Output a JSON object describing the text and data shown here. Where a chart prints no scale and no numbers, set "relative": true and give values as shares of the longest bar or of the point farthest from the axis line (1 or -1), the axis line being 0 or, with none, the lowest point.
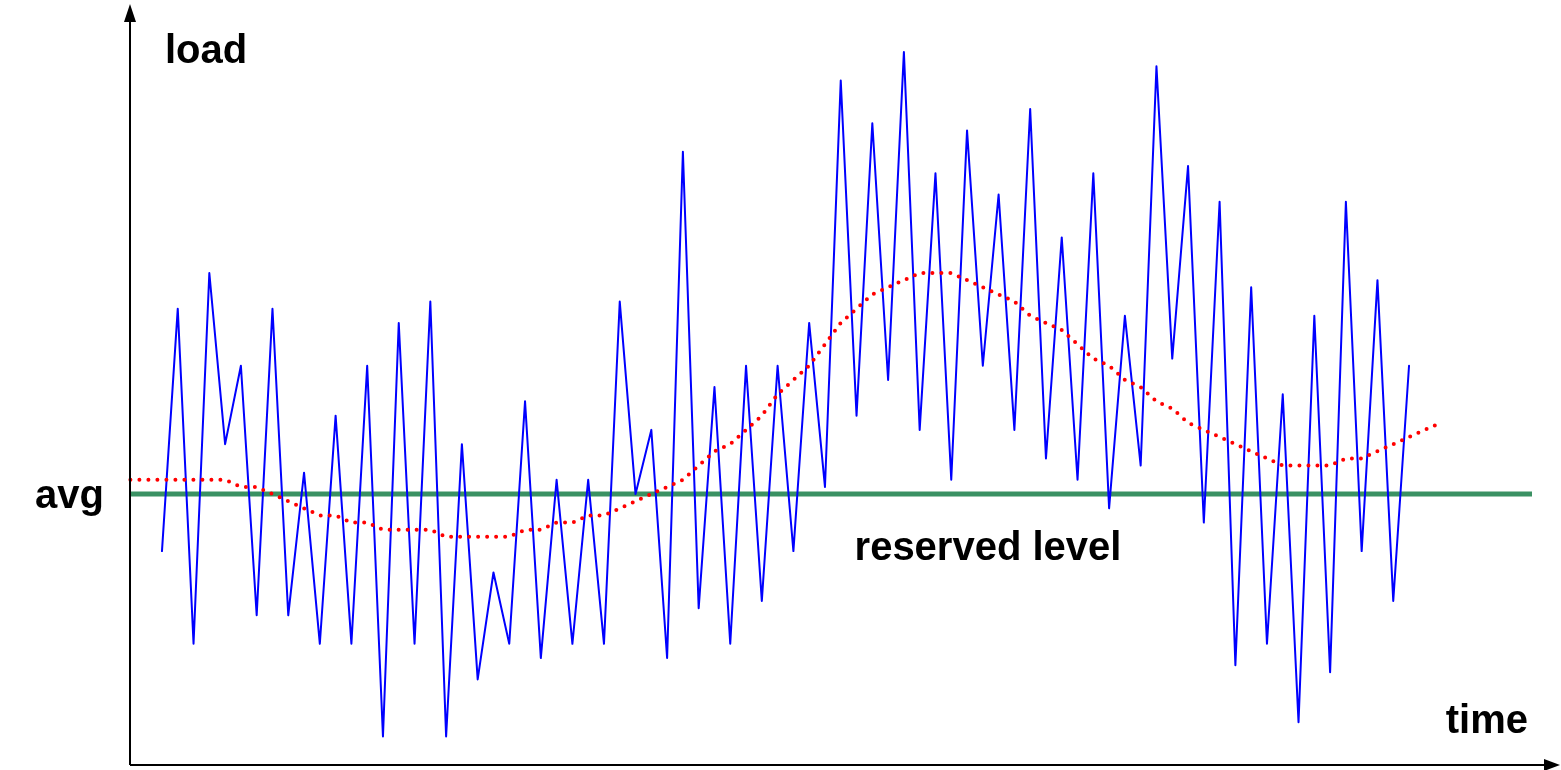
{
  "chart_data": {
    "type": "line",
    "xlabel": "time",
    "ylabel": "load",
    "relative": true,
    "marker": "none",
    "categories": [
      null,
      null,
      null,
      null,
      null,
      null,
      null,
      null,
      null,
      null,
      null,
      null,
      null,
      null,
      null,
      null,
      null,
      null,
      null,
      null,
      null,
      null,
      null,
      null,
      null,
      null,
      null,
      null,
      null,
      null,
      null,
      null,
      null,
      null,
      null,
      null,
      null,
      null,
      null,
      null,
      null,
      null,
      null,
      null,
      null,
      null,
      null,
      null,
      null,
      null,
      null,
      null,
      null,
      null,
      null,
      null,
      null,
      null,
      null,
      null,
      null,
      null,
      null,
      null,
      null,
      null,
      null,
      null,
      null,
      null,
      null,
      null,
      null,
      null,
      null,
      null,
      null,
      null,
      null,
      null,
      null,
      null,
      null,
      null
    ],
    "series": [
      {
        "color": "#0000ff",
        "line_style": "solid",
        "values": [
          null,
          null,
          0.3,
          0.64,
          0.17,
          0.69,
          0.45,
          0.56,
          0.21,
          0.64,
          0.21,
          0.41,
          0.17,
          0.49,
          0.17,
          0.56,
          0.04,
          0.62,
          0.17,
          0.65,
          0.04,
          0.45,
          0.12,
          0.27,
          0.17,
          0.51,
          0.15,
          0.4,
          0.17,
          0.4,
          0.17,
          0.65,
          0.38,
          0.47,
          0.15,
          0.86,
          0.22,
          0.53,
          0.17,
          0.56,
          0.23,
          0.56,
          0.3,
          0.62,
          0.39,
          0.96,
          0.49,
          0.9,
          0.54,
          1.0,
          0.47,
          0.83,
          0.4,
          0.89,
          0.56,
          0.8,
          0.47,
          0.92,
          0.43,
          0.74,
          0.4,
          0.83,
          0.36,
          0.63,
          0.42,
          0.98,
          0.57,
          0.84,
          0.34,
          0.79,
          0.14,
          0.67,
          0.17,
          0.52,
          0.06,
          0.63,
          0.13,
          0.79,
          0.3,
          0.68,
          0.23,
          0.56,
          null,
          null
        ]
      },
      {
        "color": "#ff0000",
        "line_style": "dotted",
        "values": [
          0.4,
          0.4,
          0.4,
          0.4,
          0.4,
          0.4,
          0.4,
          0.39,
          0.39,
          0.38,
          0.37,
          0.36,
          0.35,
          0.35,
          0.34,
          0.34,
          0.33,
          0.33,
          0.33,
          0.33,
          0.32,
          0.32,
          0.32,
          0.32,
          0.32,
          0.33,
          0.33,
          0.34,
          0.34,
          0.35,
          0.35,
          0.36,
          0.37,
          0.38,
          0.39,
          0.4,
          0.42,
          0.44,
          0.45,
          0.47,
          0.49,
          0.52,
          0.54,
          0.56,
          0.59,
          0.62,
          0.64,
          0.66,
          0.67,
          0.68,
          0.69,
          0.69,
          0.69,
          0.68,
          0.67,
          0.66,
          0.65,
          0.63,
          0.62,
          0.61,
          0.59,
          0.57,
          0.56,
          0.54,
          0.53,
          0.51,
          0.5,
          0.48,
          0.47,
          0.46,
          0.45,
          0.44,
          0.43,
          0.42,
          0.42,
          0.42,
          0.42,
          0.43,
          0.43,
          0.44,
          0.45,
          0.46,
          0.47,
          0.48
        ]
      }
    ],
    "ref_lines": [
      {
        "axis": "y",
        "value": 0.38,
        "label": "avg",
        "color": "#3a9163"
      }
    ],
    "annotations": [
      "reserved level"
    ]
  }
}
